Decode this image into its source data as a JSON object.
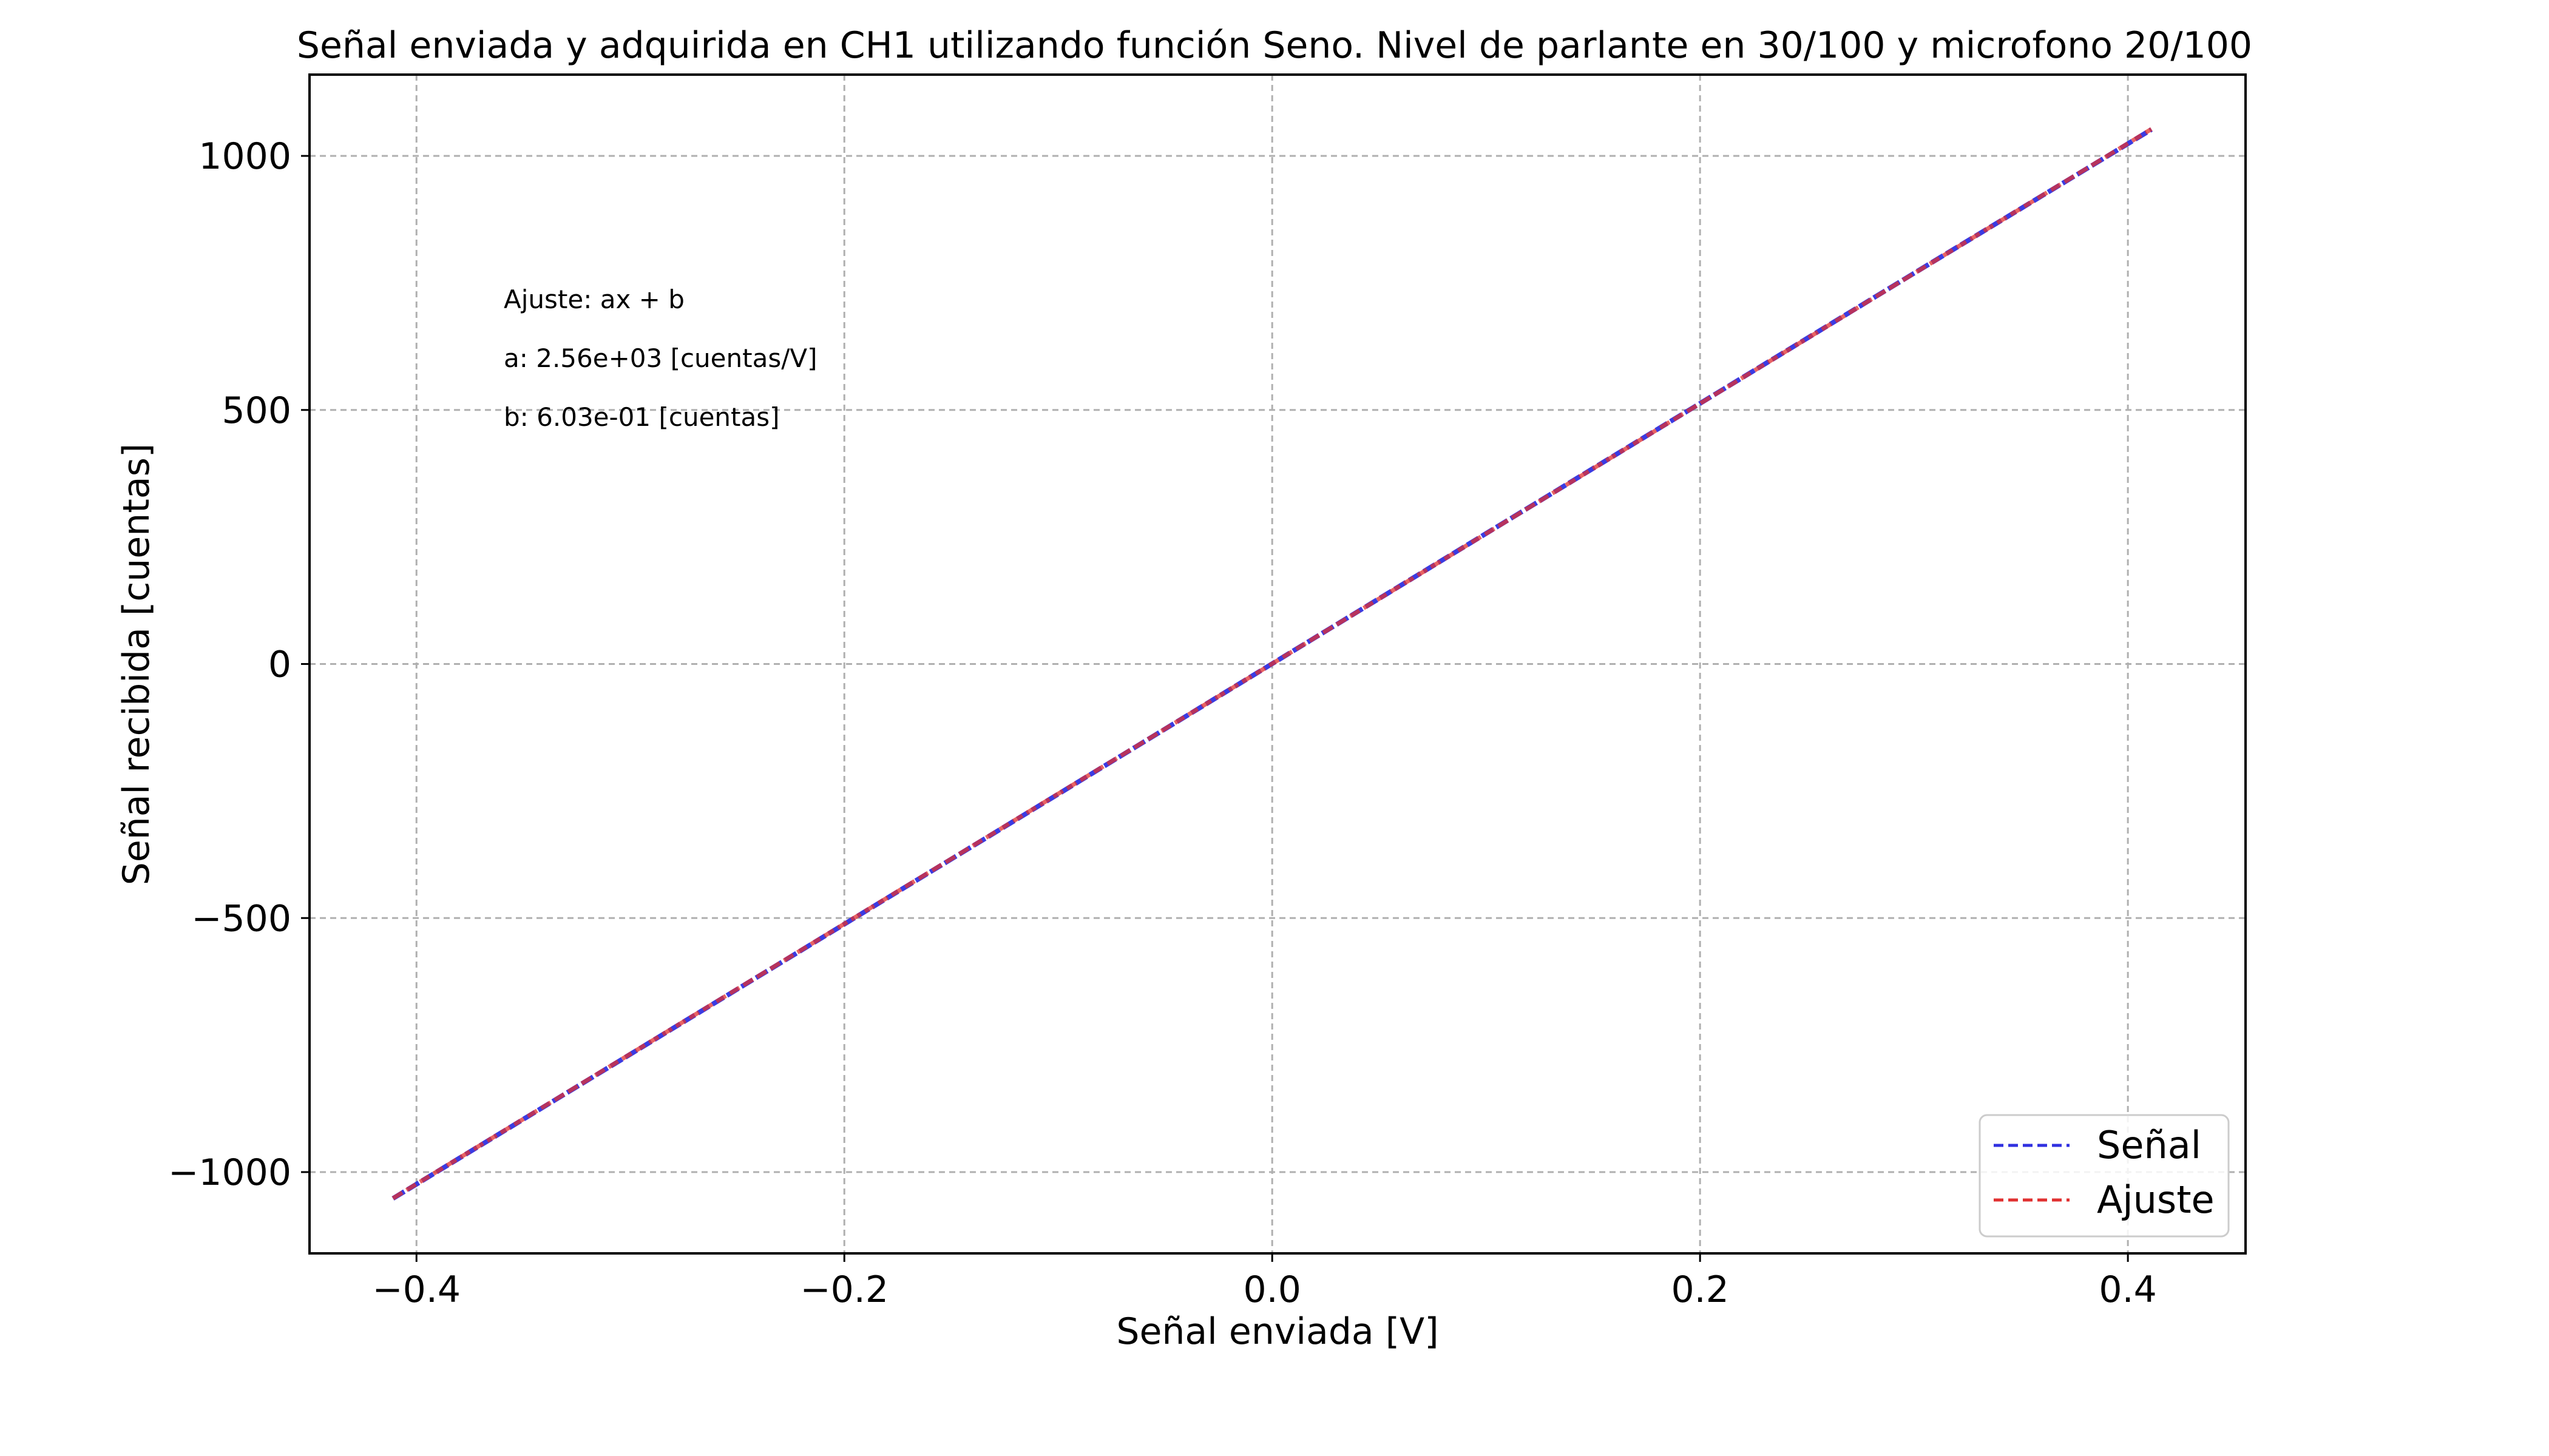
{
  "chart_data": {
    "type": "line",
    "title": "Señal enviada y adquirida en CH1 utilizando función Seno. Nivel de parlante en 30/100 y microfono 20/100",
    "xlabel": "Señal enviada [V]",
    "ylabel": "Señal recibida [cuentas]",
    "xlim": [
      -0.45,
      0.455
    ],
    "ylim": [
      -1160,
      1160
    ],
    "xticks": [
      -0.4,
      -0.2,
      0.0,
      0.2,
      0.4
    ],
    "xtick_labels": [
      "−0.4",
      "−0.2",
      "0.0",
      "0.2",
      "0.4"
    ],
    "yticks": [
      -1000,
      -500,
      0,
      500,
      1000
    ],
    "ytick_labels": [
      "−1000",
      "−500",
      "0",
      "500",
      "1000"
    ],
    "grid": true,
    "legend_position": "lower-right",
    "series": [
      {
        "name": "Señal",
        "color": "#3030e0",
        "dash": "dashed",
        "x": [
          -0.411,
          -0.3,
          -0.2,
          -0.1,
          0.0,
          0.1,
          0.2,
          0.3,
          0.411
        ],
        "y": [
          -1052,
          -768,
          -512,
          -256,
          0.6,
          257,
          513,
          769,
          1052
        ]
      },
      {
        "name": "Ajuste",
        "color": "#e03030",
        "dash": "dashed",
        "x": [
          -0.411,
          0.411
        ],
        "y": [
          -1051.6,
          1052.8
        ]
      }
    ],
    "annotations": [
      "Ajuste: ax + b",
      "a: 2.56e+03 [cuentas/V]",
      "b: 6.03e-01 [cuentas]"
    ]
  }
}
